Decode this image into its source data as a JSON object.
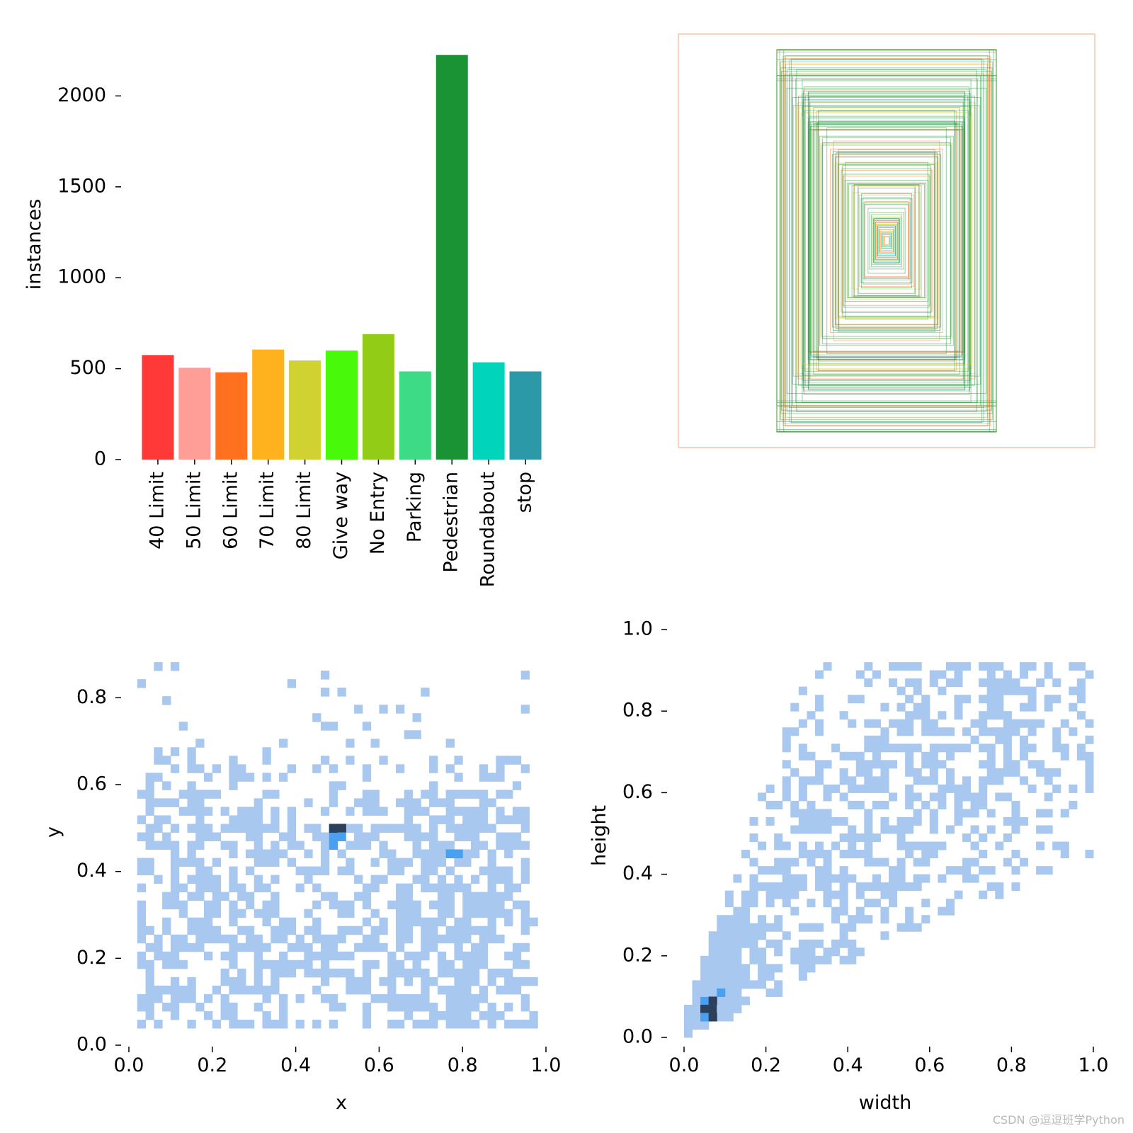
{
  "chart_data": [
    {
      "type": "bar",
      "ylabel": "instances",
      "xlabel": "",
      "ylim": [
        0,
        2250
      ],
      "yticks": [
        0,
        500,
        1000,
        1500,
        2000
      ],
      "categories": [
        "40 Limit",
        "50 Limit",
        "60 Limit",
        "70 Limit",
        "80 Limit",
        "Give way",
        "No Entry",
        "Parking",
        "Pedestrian",
        "Roundabout",
        "stop"
      ],
      "values": [
        575,
        505,
        480,
        605,
        545,
        600,
        690,
        485,
        2225,
        535,
        485
      ],
      "colors": [
        "#ff3838",
        "#ff9d97",
        "#ff701f",
        "#ffb21d",
        "#cfd231",
        "#48f90a",
        "#92cc17",
        "#3ddb86",
        "#1a9334",
        "#00d4bb",
        "#2c99a8"
      ]
    },
    {
      "type": "other",
      "description_kind": "box-overlay",
      "frame_color": "#f5b59a",
      "box_colors": [
        "#1a9334",
        "#ff701f",
        "#3ddb86",
        "#2c99a8",
        "#cfd231",
        "#00d4bb"
      ]
    },
    {
      "type": "heatmap",
      "xlabel": "x",
      "ylabel": "y",
      "xlim": [
        0,
        1
      ],
      "ylim": [
        0,
        0.9
      ],
      "xticks": [
        "0.0",
        "0.2",
        "0.4",
        "0.6",
        "0.8",
        "1.0"
      ],
      "yticks": [
        "0.0",
        "0.2",
        "0.4",
        "0.6",
        "0.8"
      ],
      "peak": [
        0.5,
        0.5
      ]
    },
    {
      "type": "heatmap",
      "xlabel": "width",
      "ylabel": "height",
      "xlim": [
        0,
        1
      ],
      "ylim": [
        0,
        1
      ],
      "xticks": [
        "0.0",
        "0.2",
        "0.4",
        "0.6",
        "0.8",
        "1.0"
      ],
      "yticks": [
        "0.0",
        "0.2",
        "0.4",
        "0.6",
        "0.8",
        "1.0"
      ],
      "peak": [
        0.06,
        0.07
      ]
    }
  ],
  "colors": {
    "heat_low": "#a9c8f0",
    "heat_mid": "#4aa0ee",
    "heat_high": "#2c3f5b"
  },
  "watermark": "CSDN @逗逗班学Python"
}
